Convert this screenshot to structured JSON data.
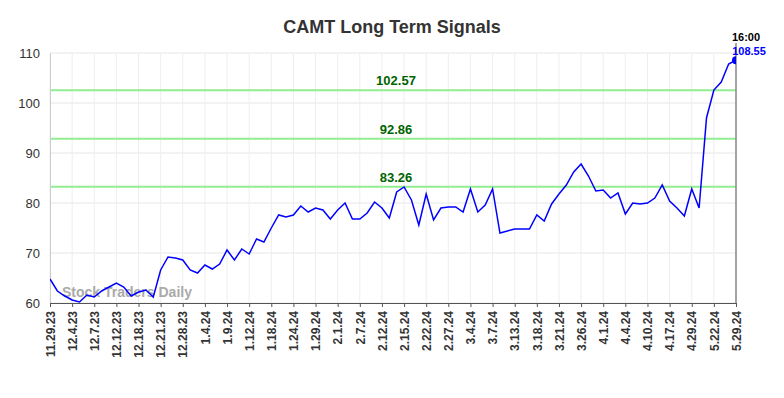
{
  "chart_data": {
    "type": "line",
    "title": "CAMT Long Term Signals",
    "categories": [
      "11.29.23",
      null,
      null,
      "12.4.23",
      null,
      null,
      "12.7.23",
      null,
      null,
      "12.12.23",
      null,
      null,
      "12.18.23",
      null,
      null,
      "12.21.23",
      null,
      null,
      "12.28.23",
      null,
      null,
      "1.4.24",
      null,
      null,
      "1.9.24",
      null,
      null,
      "1.12.24",
      null,
      null,
      "1.18.24",
      null,
      null,
      "1.24.24",
      null,
      null,
      "1.29.24",
      null,
      null,
      "2.1.24",
      null,
      null,
      "2.7.24",
      null,
      null,
      "2.12.24",
      null,
      null,
      "2.15.24",
      null,
      null,
      "2.22.24",
      null,
      null,
      "2.27.24",
      null,
      null,
      "3.4.24",
      null,
      null,
      "3.7.24",
      null,
      null,
      "3.13.24",
      null,
      null,
      "3.18.24",
      null,
      null,
      "3.21.24",
      null,
      null,
      "3.26.24",
      null,
      null,
      "4.1.24",
      null,
      null,
      "4.4.24",
      null,
      null,
      "4.10.24",
      null,
      null,
      "4.17.24",
      null,
      null,
      "4.29.24",
      null,
      null,
      "5.22.24",
      null,
      null,
      "5.29.24"
    ],
    "values": [
      64.8,
      62.4,
      61.4,
      60.6,
      60.2,
      61.6,
      61.2,
      62.4,
      63.2,
      64.0,
      63.2,
      61.4,
      62.2,
      62.6,
      61.2,
      66.6,
      69.2,
      69.0,
      68.6,
      66.6,
      66.0,
      67.6,
      66.8,
      67.8,
      70.6,
      68.6,
      70.8,
      69.8,
      72.8,
      72.2,
      75.0,
      77.6,
      77.2,
      77.6,
      79.4,
      78.2,
      79.0,
      78.6,
      76.8,
      78.6,
      80.0,
      76.8,
      76.8,
      78.0,
      80.2,
      79.0,
      77.0,
      82.2,
      83.2,
      80.6,
      75.6,
      81.8,
      76.6,
      79.0,
      79.2,
      79.2,
      78.2,
      82.8,
      78.2,
      79.6,
      82.8,
      74.0,
      74.4,
      74.8,
      74.8,
      74.8,
      77.6,
      76.4,
      79.8,
      81.8,
      83.6,
      86.2,
      87.8,
      85.4,
      82.4,
      82.6,
      81.0,
      82.0,
      77.8,
      80.0,
      79.8,
      80.0,
      81.0,
      83.6,
      80.4,
      79.0,
      77.4,
      82.8,
      79.0,
      97.0,
      102.6,
      104.2,
      107.8,
      108.55
    ],
    "color": "#0000ff",
    "ylim": [
      60,
      110
    ],
    "yticks": [
      60,
      70,
      80,
      90,
      100,
      110
    ],
    "grid": true,
    "reference_lines": [
      102.57,
      92.86,
      83.26
    ],
    "last_label": "16:00",
    "watermark": "Stock Traders Daily"
  }
}
